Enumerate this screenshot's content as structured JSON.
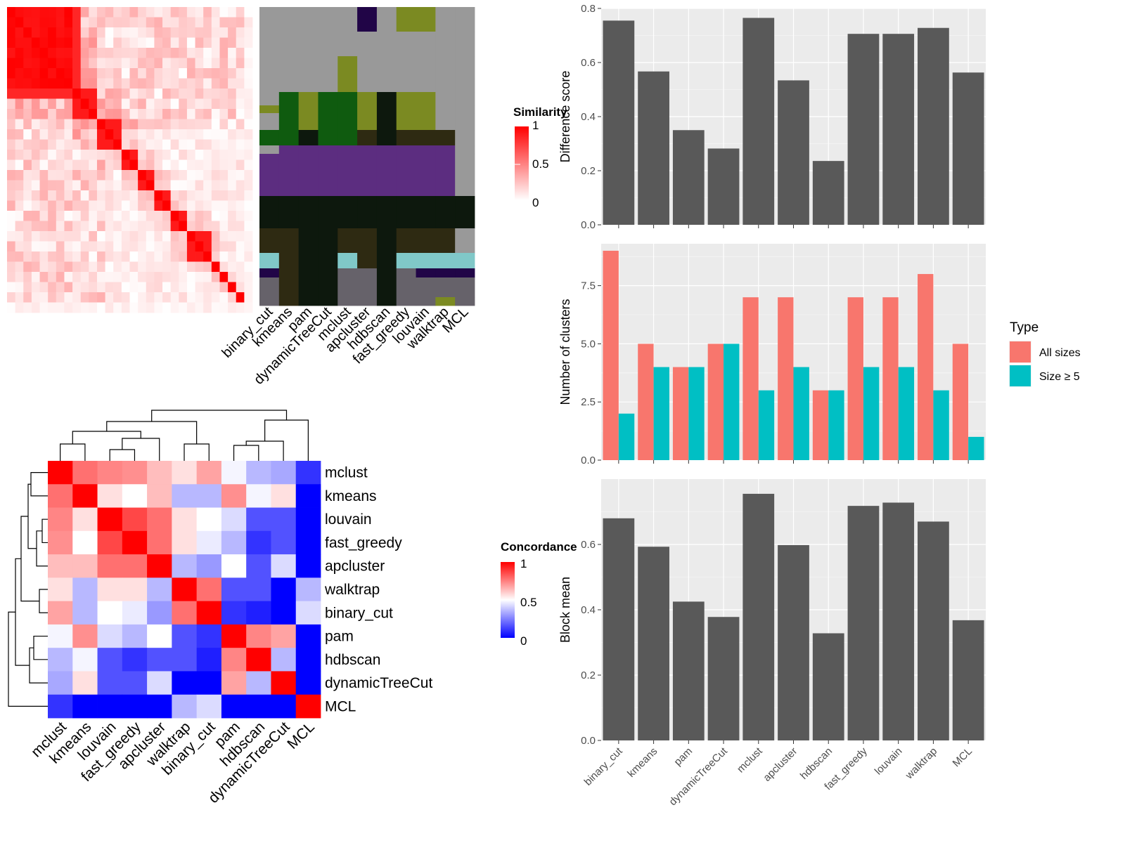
{
  "chart_data": [
    {
      "type": "heatmap",
      "title": "",
      "legend_title": "Similarity",
      "legend_ticks": [
        "1",
        "0.5",
        "0"
      ],
      "legend_colors": [
        "#ffffff",
        "#ff0000"
      ],
      "note": "cell-level similarity heatmap, values not labeled"
    },
    {
      "type": "heatmap",
      "title": "",
      "columns": [
        "binary_cut",
        "kmeans",
        "pam",
        "dynamicTreeCut",
        "mclust",
        "apcluster",
        "hdbscan",
        "fast_greedy",
        "louvain",
        "walktrap",
        "MCL"
      ],
      "palette": [
        "#999999",
        "#7b8a22",
        "#0f5b0f",
        "#0d180d",
        "#2e2a12",
        "#5c2d80",
        "#80c8c8",
        "#66626a",
        "#210547"
      ]
    },
    {
      "type": "heatmap",
      "title": "",
      "legend_title": "Concordance",
      "legend_ticks": [
        "1",
        "0.5",
        "0"
      ],
      "legend_colors": [
        "#0000ff",
        "#ffffff",
        "#ff0000"
      ],
      "rows": [
        "mclust",
        "kmeans",
        "louvain",
        "fast_greedy",
        "apcluster",
        "walktrap",
        "binary_cut",
        "pam",
        "hdbscan",
        "dynamicTreeCut",
        "MCL"
      ],
      "columns": [
        "mclust",
        "kmeans",
        "louvain",
        "fast_greedy",
        "apcluster",
        "walktrap",
        "binary_cut",
        "pam",
        "hdbscan",
        "dynamicTreeCut",
        "MCL"
      ],
      "values": [
        [
          1.0,
          0.78,
          0.74,
          0.72,
          0.63,
          0.56,
          0.68,
          0.48,
          0.36,
          0.33,
          0.1
        ],
        [
          0.78,
          1.0,
          0.56,
          0.5,
          0.63,
          0.36,
          0.36,
          0.72,
          0.48,
          0.56,
          -0.05
        ],
        [
          0.74,
          0.56,
          1.0,
          0.86,
          0.78,
          0.56,
          0.5,
          0.43,
          0.16,
          0.16,
          0.0
        ],
        [
          0.72,
          0.5,
          0.86,
          1.0,
          0.78,
          0.56,
          0.46,
          0.36,
          0.1,
          0.16,
          0.0
        ],
        [
          0.63,
          0.63,
          0.78,
          0.78,
          1.0,
          0.36,
          0.3,
          0.5,
          0.16,
          0.43,
          -0.12
        ],
        [
          0.56,
          0.36,
          0.56,
          0.56,
          0.36,
          1.0,
          0.78,
          0.16,
          0.16,
          -0.06,
          0.36
        ],
        [
          0.68,
          0.36,
          0.5,
          0.46,
          0.3,
          0.78,
          1.0,
          0.1,
          0.06,
          -0.12,
          0.43
        ],
        [
          0.48,
          0.72,
          0.43,
          0.36,
          0.5,
          0.16,
          0.1,
          1.0,
          0.74,
          0.68,
          -0.2
        ],
        [
          0.36,
          0.48,
          0.16,
          0.1,
          0.16,
          0.16,
          0.06,
          0.74,
          1.0,
          0.36,
          -0.2
        ],
        [
          0.33,
          0.56,
          0.16,
          0.16,
          0.43,
          -0.06,
          -0.12,
          0.68,
          0.36,
          1.0,
          -0.38
        ],
        [
          0.1,
          -0.05,
          0.0,
          0.0,
          -0.12,
          0.36,
          0.43,
          -0.2,
          -0.2,
          -0.38,
          1.0
        ]
      ]
    },
    {
      "type": "bar",
      "title": "",
      "xlabel": "",
      "ylabel": "Difference score",
      "ylim": [
        0,
        0.8
      ],
      "yticks": [
        "0.0",
        "0.2",
        "0.4",
        "0.6",
        "0.8"
      ],
      "categories": [
        "binary_cut",
        "kmeans",
        "pam",
        "dynamicTreeCut",
        "mclust",
        "apcluster",
        "hdbscan",
        "fast_greedy",
        "louvain",
        "walktrap",
        "MCL"
      ],
      "values": [
        0.755,
        0.567,
        0.35,
        0.282,
        0.765,
        0.534,
        0.236,
        0.706,
        0.706,
        0.728,
        0.563
      ],
      "color": "#595959"
    },
    {
      "type": "bar",
      "title": "",
      "xlabel": "",
      "ylabel": "Number of clusters",
      "ylim": [
        0,
        9.3
      ],
      "yticks": [
        "0.0",
        "2.5",
        "5.0",
        "7.5"
      ],
      "categories": [
        "binary_cut",
        "kmeans",
        "pam",
        "dynamicTreeCut",
        "mclust",
        "apcluster",
        "hdbscan",
        "fast_greedy",
        "louvain",
        "walktrap",
        "MCL"
      ],
      "series": [
        {
          "name": "All sizes",
          "values": [
            9,
            5,
            4,
            5,
            7,
            7,
            3,
            7,
            7,
            8,
            5
          ],
          "color": "#f8766d"
        },
        {
          "name": "Size ≥ 5",
          "values": [
            2,
            4,
            4,
            5,
            3,
            4,
            3,
            4,
            4,
            3,
            1
          ],
          "color": "#00bfc4"
        }
      ],
      "legend_title": "Type",
      "legend_position": "right"
    },
    {
      "type": "bar",
      "title": "",
      "xlabel": "",
      "ylabel": "Block mean",
      "ylim": [
        0,
        0.8
      ],
      "yticks": [
        "0.0",
        "0.2",
        "0.4",
        "0.6"
      ],
      "categories": [
        "binary_cut",
        "kmeans",
        "pam",
        "dynamicTreeCut",
        "mclust",
        "apcluster",
        "hdbscan",
        "fast_greedy",
        "louvain",
        "walktrap",
        "MCL"
      ],
      "values": [
        0.68,
        0.593,
        0.425,
        0.378,
        0.755,
        0.598,
        0.328,
        0.718,
        0.728,
        0.67,
        0.368
      ],
      "color": "#595959"
    }
  ]
}
